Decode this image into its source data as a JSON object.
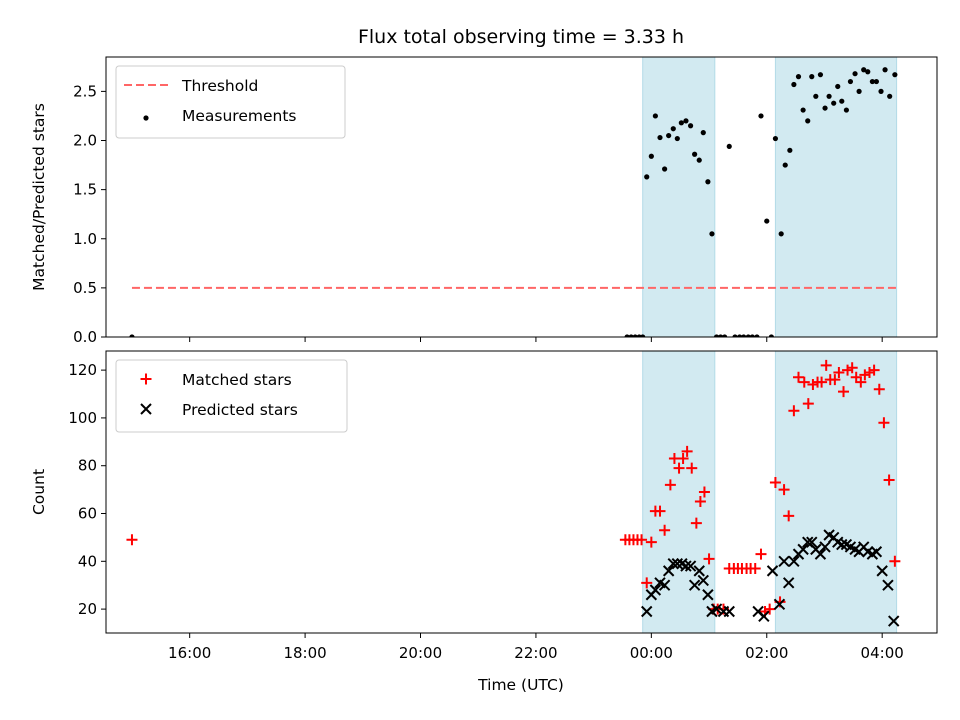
{
  "chart_data": {
    "title": "Flux total observing time = 3.33 h",
    "xlabel": "Time (UTC)",
    "x_unit": "hours since 00:00 UTC",
    "xlim": [
      -9.45,
      4.95
    ],
    "xticks": [
      -8,
      -6,
      -4,
      -2,
      0,
      2,
      4
    ],
    "xtick_labels": [
      "16:00",
      "18:00",
      "20:00",
      "22:00",
      "00:00",
      "02:00",
      "04:00"
    ],
    "shaded_intervals": [
      [
        -0.15,
        1.1
      ],
      [
        2.15,
        4.25
      ]
    ],
    "shade_color": "#add8e6",
    "panels": [
      {
        "id": "ratio",
        "type": "scatter",
        "ylabel": "Matched/Predicted stars",
        "ylim": [
          0,
          2.85
        ],
        "yticks": [
          0.0,
          0.5,
          1.0,
          1.5,
          2.0,
          2.5
        ],
        "ytick_labels": [
          "0.0",
          "0.5",
          "1.0",
          "1.5",
          "2.0",
          "2.5"
        ],
        "legend": {
          "placement": "upper-left",
          "items": [
            {
              "label": "Threshold",
              "style": "dashed-line",
              "color": "#ff6666"
            },
            {
              "label": "Measurements",
              "style": "dot",
              "color": "#000000"
            }
          ]
        },
        "threshold": {
          "name": "Threshold",
          "y": 0.5,
          "x_range": [
            -9.0,
            4.25
          ],
          "color": "#ff6666"
        },
        "series": [
          {
            "name": "Measurements",
            "marker": "dot",
            "color": "#000000",
            "points": [
              [
                -9.0,
                0.0
              ],
              [
                -0.42,
                0.0
              ],
              [
                -0.35,
                0.0
              ],
              [
                -0.28,
                0.0
              ],
              [
                -0.21,
                0.0
              ],
              [
                -0.15,
                0.0
              ],
              [
                -0.08,
                1.63
              ],
              [
                0.0,
                1.84
              ],
              [
                0.07,
                2.25
              ],
              [
                0.15,
                2.03
              ],
              [
                0.23,
                1.71
              ],
              [
                0.3,
                2.05
              ],
              [
                0.38,
                2.12
              ],
              [
                0.45,
                2.02
              ],
              [
                0.52,
                2.18
              ],
              [
                0.6,
                2.2
              ],
              [
                0.68,
                2.15
              ],
              [
                0.75,
                1.86
              ],
              [
                0.83,
                1.8
              ],
              [
                0.9,
                2.08
              ],
              [
                0.98,
                1.58
              ],
              [
                1.05,
                1.05
              ],
              [
                1.13,
                0.0
              ],
              [
                1.2,
                0.0
              ],
              [
                1.27,
                0.0
              ],
              [
                1.35,
                1.94
              ],
              [
                1.45,
                0.0
              ],
              [
                1.53,
                0.0
              ],
              [
                1.6,
                0.0
              ],
              [
                1.68,
                0.0
              ],
              [
                1.75,
                0.0
              ],
              [
                1.83,
                0.0
              ],
              [
                1.9,
                2.25
              ],
              [
                2.0,
                1.18
              ],
              [
                2.08,
                0.0
              ],
              [
                2.15,
                2.02
              ],
              [
                2.25,
                1.05
              ],
              [
                2.32,
                1.75
              ],
              [
                2.4,
                1.9
              ],
              [
                2.47,
                2.57
              ],
              [
                2.55,
                2.65
              ],
              [
                2.63,
                2.31
              ],
              [
                2.71,
                2.2
              ],
              [
                2.78,
                2.65
              ],
              [
                2.85,
                2.45
              ],
              [
                2.93,
                2.67
              ],
              [
                3.01,
                2.33
              ],
              [
                3.08,
                2.45
              ],
              [
                3.16,
                2.38
              ],
              [
                3.23,
                2.55
              ],
              [
                3.3,
                2.4
              ],
              [
                3.38,
                2.31
              ],
              [
                3.45,
                2.6
              ],
              [
                3.53,
                2.68
              ],
              [
                3.6,
                2.5
              ],
              [
                3.68,
                2.72
              ],
              [
                3.75,
                2.7
              ],
              [
                3.83,
                2.6
              ],
              [
                3.9,
                2.6
              ],
              [
                3.98,
                2.5
              ],
              [
                4.05,
                2.72
              ],
              [
                4.13,
                2.45
              ],
              [
                4.22,
                2.67
              ]
            ]
          }
        ]
      },
      {
        "id": "counts",
        "type": "scatter",
        "ylabel": "Count",
        "ylim": [
          10,
          128
        ],
        "yticks": [
          20,
          40,
          60,
          80,
          100,
          120
        ],
        "ytick_labels": [
          "20",
          "40",
          "60",
          "80",
          "100",
          "120"
        ],
        "legend": {
          "placement": "upper-left",
          "items": [
            {
              "label": "Matched stars",
              "style": "plus",
              "color": "#ff0000"
            },
            {
              "label": "Predicted stars",
              "style": "x",
              "color": "#000000"
            }
          ]
        },
        "series": [
          {
            "name": "Matched stars",
            "marker": "plus",
            "color": "#ff0000",
            "points": [
              [
                -9.0,
                49
              ],
              [
                -0.45,
                49
              ],
              [
                -0.38,
                49
              ],
              [
                -0.31,
                49
              ],
              [
                -0.24,
                49
              ],
              [
                -0.17,
                49
              ],
              [
                -0.08,
                31
              ],
              [
                0.0,
                48
              ],
              [
                0.07,
                61
              ],
              [
                0.15,
                61
              ],
              [
                0.23,
                53
              ],
              [
                0.33,
                72
              ],
              [
                0.4,
                83
              ],
              [
                0.48,
                79
              ],
              [
                0.55,
                83
              ],
              [
                0.62,
                86
              ],
              [
                0.7,
                79
              ],
              [
                0.78,
                56
              ],
              [
                0.85,
                65
              ],
              [
                0.92,
                69
              ],
              [
                1.0,
                41
              ],
              [
                1.08,
                20
              ],
              [
                1.15,
                20
              ],
              [
                1.25,
                20
              ],
              [
                1.35,
                37
              ],
              [
                1.43,
                37
              ],
              [
                1.5,
                37
              ],
              [
                1.57,
                37
              ],
              [
                1.65,
                37
              ],
              [
                1.72,
                37
              ],
              [
                1.8,
                37
              ],
              [
                1.9,
                43
              ],
              [
                1.97,
                19
              ],
              [
                2.05,
                20
              ],
              [
                2.15,
                73
              ],
              [
                2.23,
                23
              ],
              [
                2.3,
                70
              ],
              [
                2.38,
                59
              ],
              [
                2.47,
                103
              ],
              [
                2.55,
                117
              ],
              [
                2.65,
                115
              ],
              [
                2.72,
                106
              ],
              [
                2.8,
                114
              ],
              [
                2.88,
                115
              ],
              [
                2.95,
                115
              ],
              [
                3.03,
                122
              ],
              [
                3.1,
                116
              ],
              [
                3.18,
                116
              ],
              [
                3.25,
                119
              ],
              [
                3.33,
                111
              ],
              [
                3.4,
                120
              ],
              [
                3.48,
                121
              ],
              [
                3.55,
                117
              ],
              [
                3.63,
                115
              ],
              [
                3.7,
                118
              ],
              [
                3.78,
                119
              ],
              [
                3.86,
                120
              ],
              [
                3.95,
                112
              ],
              [
                4.03,
                98
              ],
              [
                4.12,
                74
              ],
              [
                4.22,
                40
              ]
            ]
          },
          {
            "name": "Predicted stars",
            "marker": "x",
            "color": "#000000",
            "points": [
              [
                -0.08,
                19
              ],
              [
                0.0,
                26
              ],
              [
                0.07,
                28
              ],
              [
                0.15,
                31
              ],
              [
                0.23,
                30
              ],
              [
                0.3,
                36
              ],
              [
                0.38,
                39
              ],
              [
                0.45,
                39
              ],
              [
                0.53,
                39
              ],
              [
                0.6,
                38
              ],
              [
                0.68,
                38
              ],
              [
                0.75,
                30
              ],
              [
                0.83,
                36
              ],
              [
                0.9,
                32
              ],
              [
                0.98,
                26
              ],
              [
                1.05,
                19
              ],
              [
                1.13,
                20
              ],
              [
                1.25,
                19
              ],
              [
                1.35,
                19
              ],
              [
                1.85,
                19
              ],
              [
                1.95,
                17
              ],
              [
                2.1,
                36
              ],
              [
                2.22,
                22
              ],
              [
                2.3,
                40
              ],
              [
                2.38,
                31
              ],
              [
                2.47,
                40
              ],
              [
                2.55,
                43
              ],
              [
                2.63,
                45
              ],
              [
                2.71,
                48
              ],
              [
                2.78,
                48
              ],
              [
                2.85,
                45
              ],
              [
                2.93,
                43
              ],
              [
                3.01,
                46
              ],
              [
                3.08,
                51
              ],
              [
                3.16,
                50
              ],
              [
                3.23,
                48
              ],
              [
                3.3,
                47
              ],
              [
                3.38,
                47
              ],
              [
                3.45,
                46
              ],
              [
                3.53,
                45
              ],
              [
                3.6,
                44
              ],
              [
                3.68,
                46
              ],
              [
                3.75,
                44
              ],
              [
                3.83,
                43
              ],
              [
                3.9,
                44
              ],
              [
                4.0,
                36
              ],
              [
                4.1,
                30
              ],
              [
                4.2,
                15
              ]
            ]
          }
        ]
      }
    ]
  }
}
